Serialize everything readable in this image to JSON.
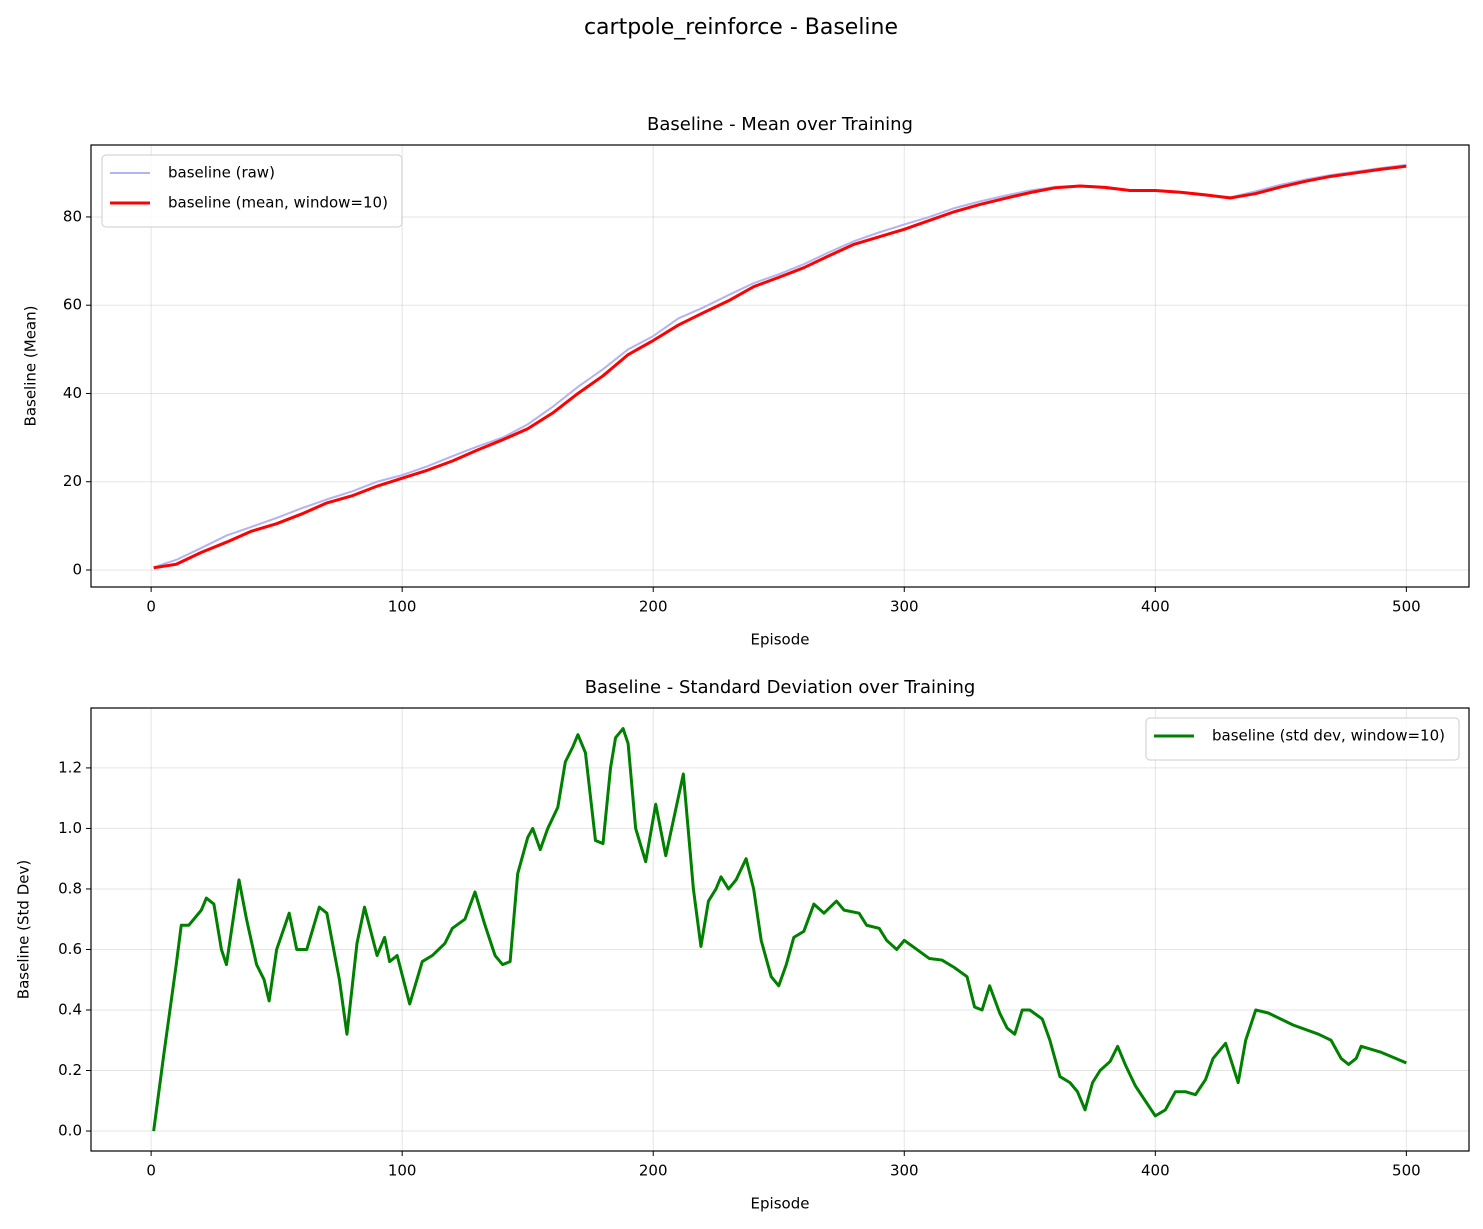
{
  "title": "cartpole_reinforce - Baseline",
  "chart_data": [
    {
      "type": "line",
      "title": "Baseline - Mean over Training",
      "xlabel": "Episode",
      "ylabel": "Baseline (Mean)",
      "xlim": [
        -23.95,
        524.95
      ],
      "ylim": [
        -3.85,
        96.3
      ],
      "xticks": [
        0,
        100,
        200,
        300,
        400,
        500
      ],
      "yticks": [
        0,
        20,
        40,
        60,
        80
      ],
      "grid": true,
      "legend": "upper-left",
      "x": [
        1,
        10,
        20,
        30,
        40,
        50,
        60,
        70,
        80,
        90,
        100,
        110,
        120,
        130,
        140,
        150,
        160,
        170,
        180,
        190,
        200,
        210,
        220,
        230,
        240,
        250,
        260,
        270,
        280,
        290,
        300,
        310,
        320,
        330,
        340,
        350,
        360,
        370,
        380,
        390,
        400,
        410,
        420,
        430,
        440,
        450,
        460,
        470,
        480,
        490,
        500
      ],
      "series": [
        {
          "name": "baseline (raw)",
          "color": "#b3b3f2",
          "width": 2,
          "values": [
            0.6,
            2.3,
            5,
            7.8,
            9.8,
            11.8,
            14,
            16,
            17.8,
            20,
            21.5,
            23.5,
            25.8,
            28,
            30,
            33,
            37,
            41.5,
            45.5,
            50,
            53,
            57,
            59.5,
            62.3,
            65,
            67,
            69.3,
            72,
            74.5,
            76.5,
            78.3,
            80,
            82,
            83.5,
            84.8,
            86,
            86.8,
            87.1,
            86.5,
            85.9,
            85.9,
            85.5,
            84.8,
            84.5,
            85.8,
            87.3,
            88.5,
            89.5,
            90.3,
            91.1,
            91.8
          ]
        },
        {
          "name": "baseline (mean, window=10)",
          "color": "#ff0000",
          "width": 3,
          "values": [
            0.5,
            1.3,
            4,
            6.3,
            8.8,
            10.5,
            12.7,
            15.2,
            16.8,
            19,
            20.8,
            22.6,
            24.7,
            27.2,
            29.5,
            32,
            35.6,
            40,
            44,
            48.8,
            52,
            55.5,
            58.3,
            61,
            64.2,
            66.3,
            68.5,
            71.2,
            73.8,
            75.5,
            77.2,
            79.2,
            81.2,
            82.8,
            84.2,
            85.5,
            86.6,
            87,
            86.7,
            86,
            86,
            85.6,
            85,
            84.3,
            85.3,
            86.8,
            88.1,
            89.2,
            90,
            90.8,
            91.5
          ]
        }
      ]
    },
    {
      "type": "line",
      "title": "Baseline - Standard Deviation over Training",
      "xlabel": "Episode",
      "ylabel": "Baseline (Std Dev)",
      "xlim": [
        -23.95,
        524.95
      ],
      "ylim": [
        -0.066,
        1.398
      ],
      "xticks": [
        0,
        100,
        200,
        300,
        400,
        500
      ],
      "yticks": [
        {
          "value": 0,
          "label": "0.0"
        },
        0.2,
        0.4,
        0.6,
        0.8,
        {
          "value": 1,
          "label": "1.0"
        },
        1.2
      ],
      "grid": true,
      "legend": "upper-right",
      "x": [
        1,
        5,
        10,
        12,
        15,
        20,
        22,
        25,
        28,
        30,
        35,
        38,
        42,
        45,
        47,
        50,
        55,
        58,
        62,
        67,
        70,
        75,
        78,
        82,
        85,
        90,
        93,
        95,
        98,
        103,
        108,
        112,
        117,
        120,
        125,
        129,
        133,
        137,
        140,
        143,
        146,
        150,
        152,
        155,
        158,
        162,
        165,
        168,
        170,
        173,
        177,
        180,
        183,
        185,
        188,
        190,
        193,
        197,
        201,
        205,
        212,
        216,
        219,
        222,
        225,
        227,
        230,
        233,
        237,
        240,
        243,
        247,
        250,
        253,
        256,
        260,
        264,
        268,
        273,
        276,
        282,
        285,
        290,
        293,
        297,
        300,
        305,
        310,
        315,
        320,
        325,
        328,
        331,
        334,
        338,
        341,
        344,
        347,
        350,
        355,
        358,
        362,
        366,
        369,
        372,
        375,
        378,
        382,
        385,
        388,
        392,
        396,
        400,
        404,
        408,
        412,
        416,
        420,
        423,
        428,
        433,
        436,
        440,
        445,
        455,
        465,
        470,
        474,
        477,
        480,
        482,
        490,
        500
      ],
      "series": [
        {
          "name": "baseline (std dev, window=10)",
          "color": "#008000",
          "width": 3,
          "values": [
            0,
            0.25,
            0.55,
            0.68,
            0.68,
            0.73,
            0.77,
            0.75,
            0.6,
            0.55,
            0.83,
            0.7,
            0.55,
            0.5,
            0.43,
            0.6,
            0.72,
            0.6,
            0.6,
            0.74,
            0.72,
            0.5,
            0.32,
            0.62,
            0.74,
            0.58,
            0.64,
            0.56,
            0.58,
            0.42,
            0.56,
            0.58,
            0.62,
            0.67,
            0.7,
            0.79,
            0.68,
            0.58,
            0.55,
            0.56,
            0.85,
            0.97,
            1,
            0.93,
            1,
            1.07,
            1.22,
            1.27,
            1.31,
            1.25,
            0.96,
            0.95,
            1.2,
            1.3,
            1.33,
            1.28,
            1,
            0.89,
            1.08,
            0.91,
            1.18,
            0.8,
            0.61,
            0.76,
            0.8,
            0.84,
            0.8,
            0.83,
            0.9,
            0.8,
            0.63,
            0.51,
            0.48,
            0.55,
            0.64,
            0.66,
            0.75,
            0.72,
            0.76,
            0.73,
            0.72,
            0.68,
            0.67,
            0.63,
            0.6,
            0.63,
            0.6,
            0.57,
            0.565,
            0.54,
            0.51,
            0.41,
            0.4,
            0.48,
            0.39,
            0.34,
            0.32,
            0.4,
            0.4,
            0.37,
            0.3,
            0.18,
            0.16,
            0.13,
            0.07,
            0.16,
            0.2,
            0.23,
            0.28,
            0.22,
            0.15,
            0.1,
            0.05,
            0.07,
            0.13,
            0.13,
            0.12,
            0.17,
            0.24,
            0.29,
            0.16,
            0.3,
            0.4,
            0.39,
            0.35,
            0.32,
            0.3,
            0.24,
            0.22,
            0.24,
            0.28,
            0.26,
            0.225
          ]
        }
      ]
    }
  ]
}
